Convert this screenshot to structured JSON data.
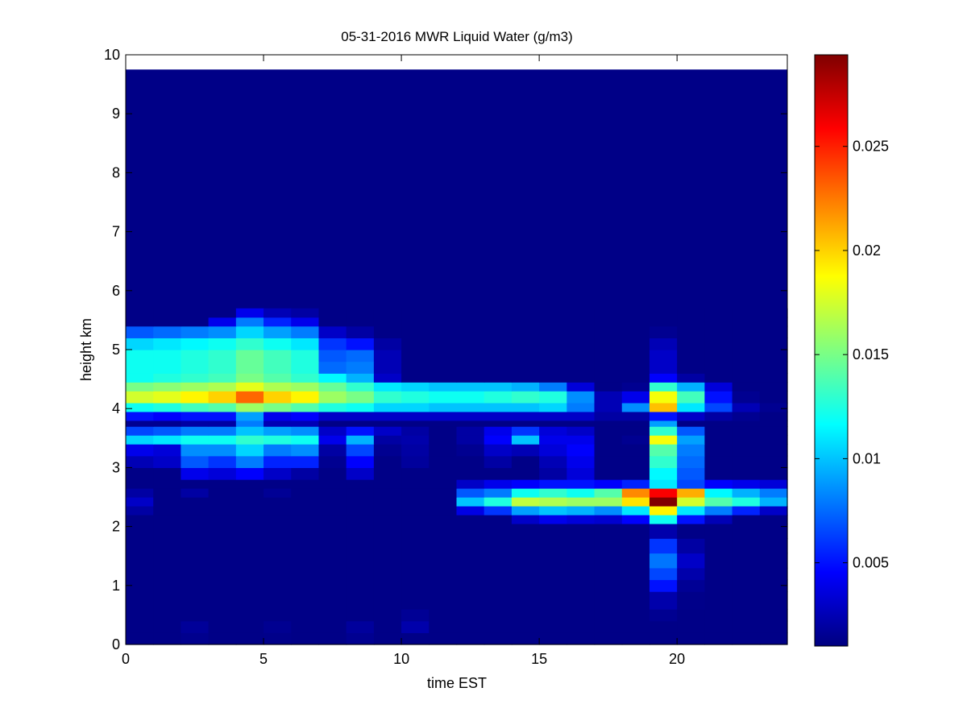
{
  "chart_data": {
    "type": "heatmap",
    "title": "05-31-2016 MWR Liquid Water (g/m3)",
    "xlabel": "time EST",
    "ylabel": "height km",
    "xlim": [
      0,
      24
    ],
    "ylim": [
      0,
      10
    ],
    "xticks": [
      "0",
      "5",
      "10",
      "15",
      "20"
    ],
    "yticks": [
      "0",
      "1",
      "2",
      "3",
      "4",
      "5",
      "6",
      "7",
      "8",
      "9",
      "10"
    ],
    "colormap": "jet",
    "colorbar": {
      "range": [
        0.001,
        0.0294
      ],
      "ticks": [
        "0.005",
        "0.01",
        "0.015",
        "0.02",
        "0.025"
      ],
      "tick_values": [
        0.005,
        0.01,
        0.015,
        0.02,
        0.025
      ]
    },
    "grid": false,
    "time_step_hours": 1,
    "time_start": 0,
    "data_top_km": 9.75,
    "rows": [
      {
        "z0": 0.0,
        "z1": 0.2,
        "v": [
          0.0012,
          0.0012,
          0.0014,
          0.0012,
          0.0012,
          0.0013,
          0.0012,
          0.0012,
          0.0015,
          0.0012,
          0.0012,
          0.0012,
          0.0012,
          0.0012,
          0.0012,
          0.0012,
          0.0012,
          0.0012,
          0.0012,
          0.0012,
          0.0012,
          0.0012,
          0.0012,
          0.0012
        ]
      },
      {
        "z0": 0.2,
        "z1": 0.4,
        "v": [
          0.0012,
          0.0012,
          0.0017,
          0.0012,
          0.0012,
          0.0015,
          0.0012,
          0.0012,
          0.0018,
          0.0012,
          0.0022,
          0.0012,
          0.0012,
          0.0012,
          0.0012,
          0.0012,
          0.0012,
          0.0012,
          0.0012,
          0.0012,
          0.0012,
          0.0012,
          0.0012,
          0.0012
        ]
      },
      {
        "z0": 0.4,
        "z1": 0.6,
        "v": [
          0.0012,
          0.0012,
          0.0012,
          0.0012,
          0.0012,
          0.0012,
          0.0012,
          0.0012,
          0.0012,
          0.0012,
          0.0016,
          0.0012,
          0.0012,
          0.0012,
          0.0012,
          0.0012,
          0.0012,
          0.0012,
          0.0012,
          0.0015,
          0.0012,
          0.0012,
          0.0012,
          0.0012
        ]
      },
      {
        "z0": 0.6,
        "z1": 0.9,
        "v": [
          0.0012,
          0.0012,
          0.0012,
          0.0012,
          0.0012,
          0.0012,
          0.0012,
          0.0012,
          0.0012,
          0.0012,
          0.0012,
          0.0012,
          0.0012,
          0.0012,
          0.0012,
          0.0012,
          0.0012,
          0.0012,
          0.0012,
          0.0022,
          0.0013,
          0.0012,
          0.0012,
          0.0012
        ]
      },
      {
        "z0": 0.9,
        "z1": 1.1,
        "v": [
          0.0012,
          0.0012,
          0.0012,
          0.0012,
          0.0012,
          0.0012,
          0.0012,
          0.0012,
          0.0012,
          0.0012,
          0.0012,
          0.0012,
          0.0012,
          0.0012,
          0.0012,
          0.0012,
          0.0012,
          0.0012,
          0.0012,
          0.005,
          0.0016,
          0.0012,
          0.0012,
          0.0012
        ]
      },
      {
        "z0": 1.1,
        "z1": 1.3,
        "v": [
          0.0012,
          0.0012,
          0.0012,
          0.0012,
          0.0012,
          0.0012,
          0.0012,
          0.0012,
          0.0012,
          0.0012,
          0.0012,
          0.0012,
          0.0012,
          0.0012,
          0.0012,
          0.0012,
          0.0012,
          0.0012,
          0.0012,
          0.0065,
          0.0022,
          0.0012,
          0.0012,
          0.0012
        ]
      },
      {
        "z0": 1.3,
        "z1": 1.55,
        "v": [
          0.0012,
          0.0012,
          0.0012,
          0.0012,
          0.0012,
          0.0012,
          0.0012,
          0.0012,
          0.0012,
          0.0012,
          0.0012,
          0.0012,
          0.0012,
          0.0012,
          0.0012,
          0.0012,
          0.0012,
          0.0012,
          0.0012,
          0.0078,
          0.003,
          0.0012,
          0.0012,
          0.0012
        ]
      },
      {
        "z0": 1.55,
        "z1": 1.8,
        "v": [
          0.0012,
          0.0012,
          0.0012,
          0.0012,
          0.0012,
          0.0012,
          0.0012,
          0.0012,
          0.0012,
          0.0012,
          0.0012,
          0.0012,
          0.0012,
          0.0012,
          0.0012,
          0.0012,
          0.0012,
          0.0012,
          0.0012,
          0.006,
          0.002,
          0.0012,
          0.0012,
          0.0012
        ]
      },
      {
        "z0": 1.8,
        "z1": 2.05,
        "v": [
          0.0012,
          0.0012,
          0.0012,
          0.0012,
          0.0012,
          0.0012,
          0.0012,
          0.0012,
          0.0012,
          0.0012,
          0.0012,
          0.0012,
          0.0012,
          0.0012,
          0.0012,
          0.0012,
          0.0012,
          0.0012,
          0.0012,
          0.0022,
          0.0012,
          0.0012,
          0.0012,
          0.0012
        ]
      },
      {
        "z0": 2.05,
        "z1": 2.2,
        "v": [
          0.0012,
          0.0012,
          0.0012,
          0.0012,
          0.0012,
          0.0012,
          0.0012,
          0.0012,
          0.0012,
          0.0012,
          0.0012,
          0.0012,
          0.0012,
          0.0012,
          0.003,
          0.004,
          0.0035,
          0.0032,
          0.0045,
          0.012,
          0.005,
          0.0025,
          0.0012,
          0.0012
        ]
      },
      {
        "z0": 2.2,
        "z1": 2.35,
        "v": [
          0.002,
          0.0012,
          0.0012,
          0.0012,
          0.0012,
          0.0012,
          0.0012,
          0.0012,
          0.0012,
          0.0012,
          0.0012,
          0.0012,
          0.0038,
          0.006,
          0.009,
          0.01,
          0.0095,
          0.0085,
          0.011,
          0.019,
          0.011,
          0.008,
          0.0055,
          0.003
        ]
      },
      {
        "z0": 2.35,
        "z1": 2.5,
        "v": [
          0.003,
          0.0012,
          0.0012,
          0.0012,
          0.0012,
          0.0012,
          0.0012,
          0.0012,
          0.0012,
          0.0012,
          0.0012,
          0.0012,
          0.01,
          0.0125,
          0.017,
          0.0165,
          0.016,
          0.016,
          0.0195,
          0.0294,
          0.0175,
          0.014,
          0.0125,
          0.0095
        ]
      },
      {
        "z0": 2.5,
        "z1": 2.65,
        "v": [
          0.002,
          0.0012,
          0.002,
          0.0012,
          0.0012,
          0.0016,
          0.0012,
          0.0012,
          0.0012,
          0.0012,
          0.0012,
          0.0012,
          0.007,
          0.008,
          0.012,
          0.013,
          0.012,
          0.014,
          0.022,
          0.026,
          0.021,
          0.0115,
          0.0095,
          0.008
        ]
      },
      {
        "z0": 2.65,
        "z1": 2.8,
        "v": [
          0.0012,
          0.0012,
          0.0012,
          0.0012,
          0.0012,
          0.0012,
          0.0012,
          0.0012,
          0.0012,
          0.0012,
          0.0012,
          0.0012,
          0.003,
          0.004,
          0.0045,
          0.005,
          0.005,
          0.0045,
          0.0055,
          0.011,
          0.0065,
          0.0045,
          0.004,
          0.0035
        ]
      },
      {
        "z0": 2.8,
        "z1": 3.0,
        "v": [
          0.0012,
          0.0012,
          0.004,
          0.0035,
          0.0045,
          0.003,
          0.002,
          0.0012,
          0.003,
          0.0012,
          0.0012,
          0.0012,
          0.0012,
          0.0012,
          0.0012,
          0.002,
          0.0035,
          0.0012,
          0.0012,
          0.0115,
          0.007,
          0.0012,
          0.0012,
          0.0012
        ]
      },
      {
        "z0": 3.0,
        "z1": 3.2,
        "v": [
          0.0025,
          0.003,
          0.007,
          0.006,
          0.008,
          0.0055,
          0.0055,
          0.0015,
          0.0045,
          0.0012,
          0.0018,
          0.0012,
          0.0012,
          0.002,
          0.0012,
          0.0025,
          0.004,
          0.0012,
          0.0012,
          0.013,
          0.0075,
          0.0012,
          0.0012,
          0.0012
        ]
      },
      {
        "z0": 3.2,
        "z1": 3.4,
        "v": [
          0.004,
          0.0035,
          0.0085,
          0.0085,
          0.0105,
          0.008,
          0.0085,
          0.002,
          0.0065,
          0.0015,
          0.002,
          0.0012,
          0.0015,
          0.003,
          0.0025,
          0.0035,
          0.0045,
          0.0012,
          0.0012,
          0.014,
          0.008,
          0.0012,
          0.0012,
          0.0012
        ]
      },
      {
        "z0": 3.4,
        "z1": 3.55,
        "v": [
          0.0105,
          0.011,
          0.012,
          0.012,
          0.013,
          0.0125,
          0.012,
          0.004,
          0.0095,
          0.002,
          0.0022,
          0.0012,
          0.002,
          0.0045,
          0.01,
          0.004,
          0.004,
          0.0012,
          0.0015,
          0.0185,
          0.009,
          0.0012,
          0.0012,
          0.0012
        ]
      },
      {
        "z0": 3.55,
        "z1": 3.7,
        "v": [
          0.0065,
          0.007,
          0.008,
          0.008,
          0.01,
          0.009,
          0.0085,
          0.003,
          0.005,
          0.003,
          0.002,
          0.0012,
          0.002,
          0.004,
          0.006,
          0.0035,
          0.003,
          0.0012,
          0.0012,
          0.013,
          0.007,
          0.0012,
          0.0012,
          0.0012
        ]
      },
      {
        "z0": 3.7,
        "z1": 3.8,
        "v": [
          0.0015,
          0.0015,
          0.002,
          0.002,
          0.008,
          0.0025,
          0.0025,
          0.0012,
          0.0012,
          0.0012,
          0.0012,
          0.0012,
          0.0012,
          0.0012,
          0.0012,
          0.0012,
          0.0012,
          0.0012,
          0.0012,
          0.009,
          0.0012,
          0.0012,
          0.0012,
          0.0012
        ]
      },
      {
        "z0": 3.8,
        "z1": 3.95,
        "v": [
          0.005,
          0.0045,
          0.005,
          0.005,
          0.009,
          0.004,
          0.0045,
          0.003,
          0.003,
          0.003,
          0.003,
          0.003,
          0.003,
          0.003,
          0.003,
          0.003,
          0.003,
          0.002,
          0.002,
          0.005,
          0.003,
          0.002,
          0.0015,
          0.0012
        ]
      },
      {
        "z0": 3.95,
        "z1": 4.1,
        "v": [
          0.012,
          0.0125,
          0.0135,
          0.014,
          0.016,
          0.015,
          0.014,
          0.0125,
          0.012,
          0.0105,
          0.0105,
          0.01,
          0.01,
          0.01,
          0.01,
          0.0105,
          0.008,
          0.0025,
          0.0085,
          0.0205,
          0.011,
          0.0065,
          0.0025,
          0.0015
        ]
      },
      {
        "z0": 4.1,
        "z1": 4.3,
        "v": [
          0.0175,
          0.018,
          0.019,
          0.02,
          0.023,
          0.02,
          0.019,
          0.016,
          0.015,
          0.013,
          0.0125,
          0.012,
          0.012,
          0.0125,
          0.013,
          0.0125,
          0.0085,
          0.0025,
          0.004,
          0.0185,
          0.0135,
          0.005,
          0.0015,
          0.0012
        ]
      },
      {
        "z0": 4.3,
        "z1": 4.45,
        "v": [
          0.015,
          0.0155,
          0.016,
          0.0165,
          0.018,
          0.0165,
          0.016,
          0.0145,
          0.013,
          0.011,
          0.0105,
          0.01,
          0.01,
          0.01,
          0.0095,
          0.008,
          0.0035,
          0.0012,
          0.0015,
          0.013,
          0.0095,
          0.0035,
          0.0012,
          0.0012
        ]
      },
      {
        "z0": 4.45,
        "z1": 4.6,
        "v": [
          0.012,
          0.0125,
          0.013,
          0.0135,
          0.015,
          0.014,
          0.013,
          0.0115,
          0.0095,
          0.003,
          0.0012,
          0.0012,
          0.0012,
          0.0012,
          0.0012,
          0.0012,
          0.0012,
          0.0012,
          0.0012,
          0.0045,
          0.002,
          0.0012,
          0.0012,
          0.0012
        ]
      },
      {
        "z0": 4.6,
        "z1": 4.8,
        "v": [
          0.012,
          0.012,
          0.0125,
          0.013,
          0.0145,
          0.0135,
          0.0125,
          0.0075,
          0.008,
          0.0025,
          0.0012,
          0.0012,
          0.0012,
          0.0012,
          0.0012,
          0.0012,
          0.0012,
          0.0012,
          0.0012,
          0.003,
          0.0012,
          0.0012,
          0.0012,
          0.0012
        ]
      },
      {
        "z0": 4.8,
        "z1": 5.0,
        "v": [
          0.012,
          0.012,
          0.0125,
          0.013,
          0.0145,
          0.0135,
          0.0125,
          0.007,
          0.0075,
          0.0025,
          0.0012,
          0.0012,
          0.0012,
          0.0012,
          0.0012,
          0.0012,
          0.0012,
          0.0012,
          0.0012,
          0.003,
          0.0012,
          0.0012,
          0.0012,
          0.0012
        ]
      },
      {
        "z0": 5.0,
        "z1": 5.2,
        "v": [
          0.0105,
          0.011,
          0.0115,
          0.012,
          0.013,
          0.012,
          0.011,
          0.006,
          0.005,
          0.002,
          0.0012,
          0.0012,
          0.0012,
          0.0012,
          0.0012,
          0.0012,
          0.0012,
          0.0012,
          0.0012,
          0.0025,
          0.0012,
          0.0012,
          0.0012,
          0.0012
        ]
      },
      {
        "z0": 5.2,
        "z1": 5.4,
        "v": [
          0.007,
          0.0075,
          0.008,
          0.0085,
          0.0105,
          0.009,
          0.008,
          0.003,
          0.002,
          0.0012,
          0.0012,
          0.0012,
          0.0012,
          0.0012,
          0.0012,
          0.0012,
          0.0012,
          0.0012,
          0.0012,
          0.0015,
          0.0012,
          0.0012,
          0.0012,
          0.0012
        ]
      },
      {
        "z0": 5.4,
        "z1": 5.55,
        "v": [
          0.0012,
          0.0012,
          0.0012,
          0.004,
          0.008,
          0.0055,
          0.004,
          0.0012,
          0.0012,
          0.0012,
          0.0012,
          0.0012,
          0.0012,
          0.0012,
          0.0012,
          0.0012,
          0.0012,
          0.0012,
          0.0012,
          0.0012,
          0.0012,
          0.0012,
          0.0012,
          0.0012
        ]
      },
      {
        "z0": 5.55,
        "z1": 5.7,
        "v": [
          0.0012,
          0.0012,
          0.0012,
          0.0012,
          0.004,
          0.0025,
          0.002,
          0.0012,
          0.0012,
          0.0012,
          0.0012,
          0.0012,
          0.0012,
          0.0012,
          0.0012,
          0.0012,
          0.0012,
          0.0012,
          0.0012,
          0.0012,
          0.0012,
          0.0012,
          0.0012,
          0.0012
        ]
      }
    ]
  }
}
